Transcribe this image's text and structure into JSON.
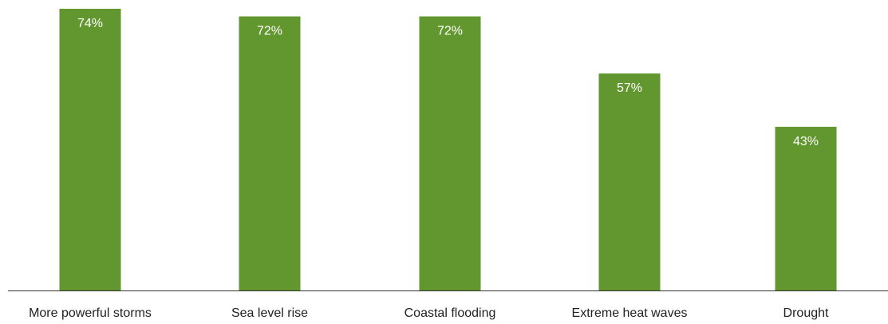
{
  "chart_data": {
    "type": "bar",
    "categories": [
      "More powerful storms",
      "Sea level rise",
      "Coastal flooding",
      "Extreme heat waves",
      "Drought"
    ],
    "values": [
      74,
      72,
      72,
      57,
      43
    ],
    "value_labels": [
      "74%",
      "72%",
      "72%",
      "57%",
      "43%"
    ],
    "title": "",
    "xlabel": "",
    "ylabel": "",
    "ylim": [
      0,
      76
    ],
    "grid": false,
    "legend": "none",
    "colors": {
      "bar": "#62962e",
      "bar_label": "#ffffff",
      "axis": "#333333",
      "category_label": "#222222"
    }
  }
}
